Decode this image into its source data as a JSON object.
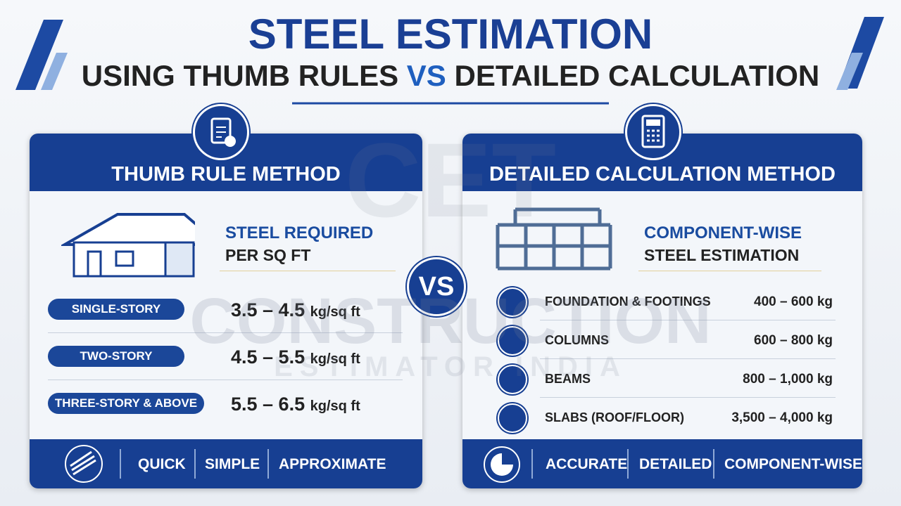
{
  "header": {
    "title": "STEEL ESTIMATION",
    "subtitle_left": "USING THUMB RULES",
    "subtitle_vs": "VS",
    "subtitle_right": "DETAILED CALCULATION"
  },
  "watermark": {
    "logo": "CET",
    "line1": "CONSTRUCTION",
    "line2": "ESTIMATOR INDIA"
  },
  "vs_badge": "VS",
  "left_panel": {
    "heading": "THUMB RULE METHOD",
    "intro_highlight": "STEEL REQUIRED",
    "intro_text": "PER SQ FT",
    "rows": [
      {
        "label": "SINGLE-STORY",
        "value": "3.5 – 4.5",
        "unit": "kg/sq ft"
      },
      {
        "label": "TWO-STORY",
        "value": "4.5 – 5.5",
        "unit": "kg/sq ft"
      },
      {
        "label": "THREE-STORY & ABOVE",
        "value": "5.5 – 6.5",
        "unit": "kg/sq ft"
      }
    ],
    "footer": [
      "QUICK",
      "SIMPLE",
      "APPROXIMATE"
    ]
  },
  "right_panel": {
    "heading": "DETAILED CALCULATION METHOD",
    "intro_highlight": "COMPONENT-WISE",
    "intro_text": "STEEL ESTIMATION",
    "rows": [
      {
        "label": "FOUNDATION & FOOTINGS",
        "value": "400 – 600 kg"
      },
      {
        "label": "COLUMNS",
        "value": "600 – 800 kg"
      },
      {
        "label": "BEAMS",
        "value": "800 – 1,000 kg"
      },
      {
        "label": "SLABS (ROOF/FLOOR)",
        "value": "3,500 – 4,000 kg"
      }
    ],
    "footer": [
      "ACCURATE",
      "DETAILED",
      "COMPONENT-WISE"
    ]
  }
}
